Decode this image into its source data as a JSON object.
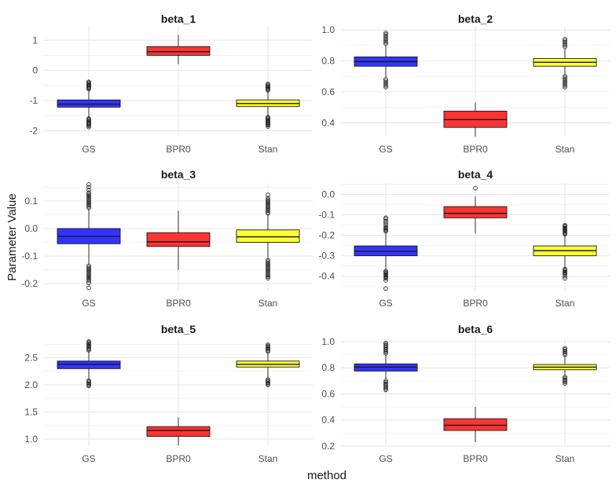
{
  "chart_data": {
    "type": "boxplot",
    "xlabel": "method",
    "ylabel": "Parameter Value",
    "grid": true,
    "legend": "none",
    "categories": [
      "GS",
      "BPR0",
      "Stan"
    ],
    "colors": [
      "#3333ff",
      "#ff3333",
      "#ffff33"
    ],
    "panels": [
      {
        "title": "beta_1",
        "ylim": [
          -2.2,
          1.45
        ],
        "yticks": [
          {
            "v": -2,
            "label": "-2"
          },
          {
            "v": -1,
            "label": "-1"
          },
          {
            "v": 0,
            "label": "0"
          },
          {
            "v": 1,
            "label": "1"
          }
        ],
        "boxes": [
          {
            "q1": -1.22,
            "median": -1.12,
            "q3": -0.98,
            "wlo": -1.56,
            "whi": -0.66,
            "outliers_low": [
              -1.6,
              -1.63,
              -1.66,
              -1.69,
              -1.72,
              -1.75,
              -1.78,
              -1.81,
              -1.84,
              -1.88
            ],
            "outliers_high": [
              -0.62,
              -0.59,
              -0.56,
              -0.53,
              -0.5,
              -0.47,
              -0.44,
              -0.41,
              -0.38
            ]
          },
          {
            "q1": 0.5,
            "median": 0.62,
            "q3": 0.79,
            "wlo": 0.2,
            "whi": 1.18,
            "outliers_low": [],
            "outliers_high": []
          },
          {
            "q1": -1.2,
            "median": -1.1,
            "q3": -0.98,
            "wlo": -1.5,
            "whi": -0.7,
            "outliers_low": [
              -1.55,
              -1.58,
              -1.61,
              -1.64,
              -1.67,
              -1.7,
              -1.73,
              -1.76,
              -1.79,
              -1.82,
              -1.86
            ],
            "outliers_high": [
              -0.66,
              -0.63,
              -0.6,
              -0.57,
              -0.54,
              -0.51,
              -0.48,
              -0.45
            ]
          }
        ]
      },
      {
        "title": "beta_2",
        "ylim": [
          0.31,
          1.02
        ],
        "yticks": [
          {
            "v": 0.4,
            "label": "0.4"
          },
          {
            "v": 0.6,
            "label": "0.6"
          },
          {
            "v": 0.8,
            "label": "0.8"
          },
          {
            "v": 1.0,
            "label": "1.0"
          }
        ],
        "boxes": [
          {
            "q1": 0.765,
            "median": 0.795,
            "q3": 0.825,
            "wlo": 0.69,
            "whi": 0.9,
            "outliers_low": [
              0.68,
              0.67,
              0.66,
              0.65,
              0.64,
              0.63
            ],
            "outliers_high": [
              0.91,
              0.92,
              0.93,
              0.94,
              0.95,
              0.96,
              0.97,
              0.98
            ]
          },
          {
            "q1": 0.37,
            "median": 0.42,
            "q3": 0.475,
            "wlo": 0.31,
            "whi": 0.53,
            "outliers_low": [],
            "outliers_high": []
          },
          {
            "q1": 0.765,
            "median": 0.79,
            "q3": 0.815,
            "wlo": 0.71,
            "whi": 0.88,
            "outliers_low": [
              0.7,
              0.69,
              0.68,
              0.67,
              0.66,
              0.65,
              0.64,
              0.63
            ],
            "outliers_high": [
              0.89,
              0.9,
              0.91,
              0.92,
              0.93,
              0.94
            ]
          }
        ]
      },
      {
        "title": "beta_3",
        "ylim": [
          -0.225,
          0.165
        ],
        "yticks": [
          {
            "v": -0.2,
            "label": "-0.2"
          },
          {
            "v": -0.1,
            "label": "-0.1"
          },
          {
            "v": 0.0,
            "label": "0.0"
          },
          {
            "v": 0.1,
            "label": "0.1"
          }
        ],
        "boxes": [
          {
            "q1": -0.055,
            "median": -0.028,
            "q3": 0.0,
            "wlo": -0.13,
            "whi": 0.07,
            "outliers_low": [
              -0.135,
              -0.14,
              -0.145,
              -0.15,
              -0.155,
              -0.16,
              -0.165,
              -0.17,
              -0.175,
              -0.18,
              -0.185,
              -0.19,
              -0.197,
              -0.215
            ],
            "outliers_high": [
              0.075,
              0.08,
              0.085,
              0.09,
              0.095,
              0.1,
              0.105,
              0.11,
              0.115,
              0.12,
              0.125,
              0.13,
              0.14,
              0.15,
              0.16
            ]
          },
          {
            "q1": -0.065,
            "median": -0.048,
            "q3": -0.015,
            "wlo": -0.15,
            "whi": 0.065,
            "outliers_low": [],
            "outliers_high": []
          },
          {
            "q1": -0.05,
            "median": -0.03,
            "q3": -0.005,
            "wlo": -0.11,
            "whi": 0.05,
            "outliers_low": [
              -0.115,
              -0.12,
              -0.125,
              -0.13,
              -0.135,
              -0.14,
              -0.145,
              -0.15,
              -0.155,
              -0.16,
              -0.165,
              -0.17,
              -0.175,
              -0.18
            ],
            "outliers_high": [
              0.055,
              0.06,
              0.065,
              0.07,
              0.075,
              0.08,
              0.085,
              0.09,
              0.095,
              0.1,
              0.105,
              0.11,
              0.122
            ]
          }
        ]
      },
      {
        "title": "beta_4",
        "ylim": [
          -0.47,
          0.055
        ],
        "yticks": [
          {
            "v": -0.4,
            "label": "-0.4"
          },
          {
            "v": -0.3,
            "label": "-0.3"
          },
          {
            "v": -0.2,
            "label": "-0.2"
          },
          {
            "v": -0.1,
            "label": "-0.1"
          },
          {
            "v": 0.0,
            "label": "0.0"
          }
        ],
        "boxes": [
          {
            "q1": -0.3,
            "median": -0.278,
            "q3": -0.252,
            "wlo": -0.37,
            "whi": -0.185,
            "outliers_low": [
              -0.375,
              -0.38,
              -0.385,
              -0.39,
              -0.395,
              -0.4,
              -0.405,
              -0.41,
              -0.42,
              -0.46
            ],
            "outliers_high": [
              -0.18,
              -0.175,
              -0.17,
              -0.165,
              -0.16,
              -0.15,
              -0.14,
              -0.13,
              -0.12,
              -0.115
            ]
          },
          {
            "q1": -0.115,
            "median": -0.093,
            "q3": -0.06,
            "wlo": -0.19,
            "whi": -0.01,
            "outliers_low": [],
            "outliers_high": [
              0.03
            ]
          },
          {
            "q1": -0.3,
            "median": -0.275,
            "q3": -0.252,
            "wlo": -0.36,
            "whi": -0.2,
            "outliers_low": [
              -0.365,
              -0.37,
              -0.375,
              -0.38,
              -0.385,
              -0.39,
              -0.4,
              -0.41
            ],
            "outliers_high": [
              -0.195,
              -0.19,
              -0.185,
              -0.18,
              -0.175,
              -0.17,
              -0.165,
              -0.16,
              -0.155,
              -0.15
            ]
          }
        ]
      },
      {
        "title": "beta_5",
        "ylim": [
          0.87,
          2.87
        ],
        "yticks": [
          {
            "v": 1.0,
            "label": "1.0"
          },
          {
            "v": 1.5,
            "label": "1.5"
          },
          {
            "v": 2.0,
            "label": "2.0"
          },
          {
            "v": 2.5,
            "label": "2.5"
          }
        ],
        "boxes": [
          {
            "q1": 2.3,
            "median": 2.38,
            "q3": 2.44,
            "wlo": 2.1,
            "whi": 2.62,
            "outliers_low": [
              2.08,
              2.06,
              2.04,
              2.02,
              2.0,
              1.98
            ],
            "outliers_high": [
              2.64,
              2.66,
              2.68,
              2.7,
              2.72,
              2.74,
              2.76,
              2.78,
              2.8
            ]
          },
          {
            "q1": 1.05,
            "median": 1.16,
            "q3": 1.23,
            "wlo": 0.88,
            "whi": 1.4,
            "outliers_low": [],
            "outliers_high": []
          },
          {
            "q1": 2.33,
            "median": 2.38,
            "q3": 2.44,
            "wlo": 2.12,
            "whi": 2.6,
            "outliers_low": [
              2.1,
              2.08,
              2.06,
              2.04,
              2.02,
              2.0
            ],
            "outliers_high": [
              2.62,
              2.64,
              2.66,
              2.68,
              2.7,
              2.72,
              2.74
            ]
          }
        ]
      },
      {
        "title": "beta_6",
        "ylim": [
          0.2,
          1.03
        ],
        "yticks": [
          {
            "v": 0.2,
            "label": "0.2"
          },
          {
            "v": 0.4,
            "label": "0.4"
          },
          {
            "v": 0.6,
            "label": "0.6"
          },
          {
            "v": 0.8,
            "label": "0.8"
          },
          {
            "v": 1.0,
            "label": "1.0"
          }
        ],
        "boxes": [
          {
            "q1": 0.775,
            "median": 0.805,
            "q3": 0.83,
            "wlo": 0.71,
            "whi": 0.9,
            "outliers_low": [
              0.7,
              0.69,
              0.68,
              0.67,
              0.66,
              0.65,
              0.64,
              0.63
            ],
            "outliers_high": [
              0.91,
              0.92,
              0.93,
              0.94,
              0.95,
              0.96,
              0.97,
              0.98,
              0.99
            ]
          },
          {
            "q1": 0.32,
            "median": 0.36,
            "q3": 0.41,
            "wlo": 0.23,
            "whi": 0.5,
            "outliers_low": [],
            "outliers_high": []
          },
          {
            "q1": 0.785,
            "median": 0.805,
            "q3": 0.825,
            "wlo": 0.74,
            "whi": 0.89,
            "outliers_low": [
              0.73,
              0.72,
              0.71,
              0.7,
              0.69,
              0.68
            ],
            "outliers_high": [
              0.9,
              0.91,
              0.92,
              0.93,
              0.94,
              0.95
            ]
          }
        ]
      }
    ]
  }
}
